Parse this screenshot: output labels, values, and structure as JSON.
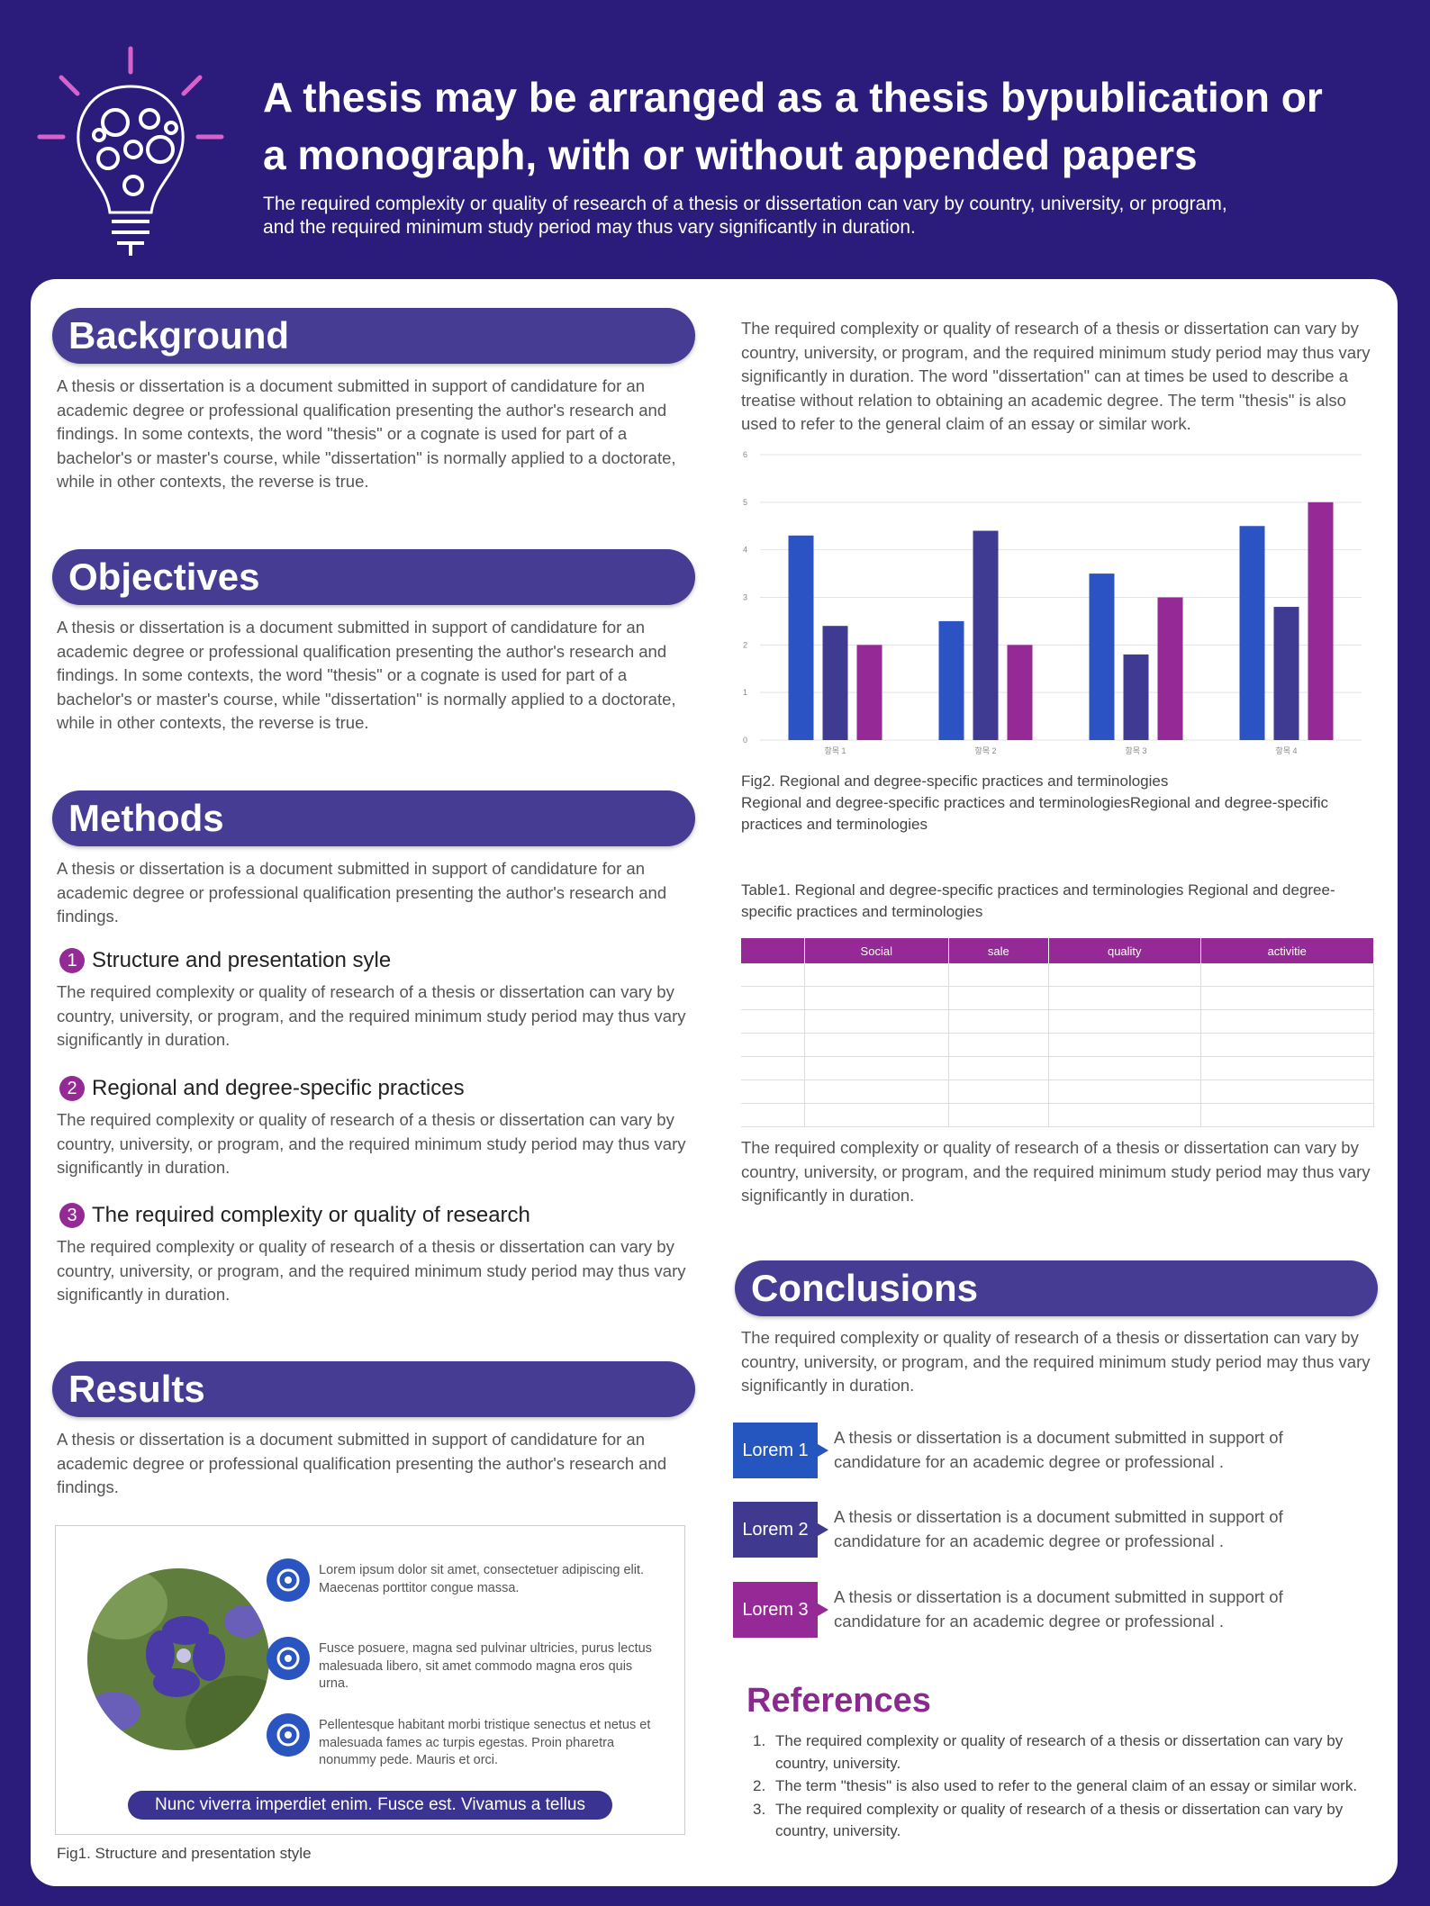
{
  "header": {
    "title": "A thesis may be arranged as a thesis bypublication or a monograph, with or without appended papers",
    "subtitle": "The required complexity or quality of research of a thesis or dissertation can vary by country, university, or program, and the required minimum study period may thus vary significantly in duration."
  },
  "background": {
    "heading": "Background",
    "text": "A thesis or dissertation is a document submitted in support of candidature for an academic degree or professional qualification presenting the author's research and findings. In some contexts, the word \"thesis\" or a cognate is used for part of a bachelor's or master's course, while \"dissertation\" is normally applied to a doctorate, while in other contexts, the reverse is true."
  },
  "objectives": {
    "heading": "Objectives",
    "text": "A thesis or dissertation is a document submitted in support of candidature for an academic degree or professional qualification presenting the author's research and findings. In some contexts, the word \"thesis\" or a cognate is used for part of a bachelor's or master's course, while \"dissertation\" is normally applied to a doctorate, while in other contexts, the reverse is true."
  },
  "methods": {
    "heading": "Methods",
    "text": "A thesis or dissertation is a document submitted in support of candidature for an academic degree or professional qualification presenting the author's research and findings.",
    "items": [
      {
        "number": 1,
        "title": "Structure and presentation syle",
        "text": "The required complexity or quality of research of a thesis or dissertation can vary by country, university, or program, and the required minimum study period may thus vary significantly in duration."
      },
      {
        "number": 2,
        "title": "Regional and degree-specific practices",
        "text": "The required complexity or quality of research of a thesis or dissertation can vary by country, university, or program, and the required minimum study period may thus vary significantly in duration."
      },
      {
        "number": 3,
        "title": "The required complexity or quality of research",
        "text": "The required complexity or quality of research of a thesis or dissertation can vary by country, university, or program, and the required minimum study period may thus vary significantly in duration."
      }
    ]
  },
  "results": {
    "heading": "Results",
    "text": "A thesis or dissertation is a document submitted in support of candidature for an academic degree or professional qualification presenting the author's research and findings.",
    "figure": {
      "items": [
        "Lorem ipsum dolor sit amet, consectetuer adipiscing elit. Maecenas porttitor congue massa.",
        "Fusce posuere, magna sed pulvinar ultricies, purus lectus malesuada libero, sit amet commodo magna eros quis urna.",
        "Pellentesque habitant morbi tristique senectus et netus et malesuada fames ac turpis egestas. Proin pharetra nonummy pede. Mauris et orci."
      ],
      "banner": "Nunc viverra imperdiet enim. Fusce est. Vivamus a tellus",
      "caption": "Fig1. Structure and presentation style"
    }
  },
  "intro": "The required complexity or quality of research of a thesis or dissertation can vary by country, university, or program, and the required minimum study period may thus vary significantly in duration. The word \"dissertation\" can at times be used to describe a treatise without relation to obtaining an academic degree. The term \"thesis\" is also used to refer to the general claim of an essay or similar work.",
  "chart_data": {
    "type": "bar",
    "categories": [
      "항목 1",
      "항목 2",
      "항목 3",
      "항목 4"
    ],
    "series": [
      {
        "color": "#2c53c4",
        "values": [
          4.3,
          2.5,
          3.5,
          4.5
        ]
      },
      {
        "color": "#3f3a92",
        "values": [
          2.4,
          4.4,
          1.8,
          2.8
        ]
      },
      {
        "color": "#952a96",
        "values": [
          2,
          2,
          3,
          5
        ]
      }
    ],
    "ylim": [
      0,
      6
    ],
    "yticks": [
      0,
      1,
      2,
      3,
      4,
      5,
      6
    ],
    "grid": true
  },
  "fig2": {
    "caption": "Fig2. Regional and degree-specific practices and terminologies",
    "text": "Regional and degree-specific practices and terminologiesRegional and degree-specific practices and terminologies"
  },
  "table": {
    "caption": "Table1. Regional and degree-specific practices and terminologies Regional and degree-specific practices and terminologies",
    "columns": [
      "Social",
      "sale",
      "quality",
      "activitie"
    ]
  },
  "after_table": "The required complexity or quality of research of a thesis or dissertation can vary by country, university, or program, and the required minimum study period may thus vary significantly in duration.",
  "conclusions": {
    "heading": "Conclusions",
    "text": "The required complexity or quality of research of a thesis or dissertation can vary by country, university, or program, and the required minimum study period may thus vary significantly in duration.",
    "items": [
      {
        "label": "Lorem 1",
        "text": "A thesis or dissertation is a document submitted in support of candidature for an academic degree or professional ."
      },
      {
        "label": "Lorem 2",
        "text": "A thesis or dissertation is a document submitted in support of candidature for an academic degree or professional ."
      },
      {
        "label": "Lorem 3",
        "text": "A thesis or dissertation is a document submitted in support of candidature for an academic degree or professional ."
      }
    ]
  },
  "references": {
    "heading": "References",
    "items": [
      "The required complexity or quality of research of a thesis or dissertation can vary by country, university.",
      "The term \"thesis\" is also used to refer to the general claim of an essay or similar work.",
      "The required complexity or quality of research of a thesis or dissertation can vary by country, university."
    ]
  }
}
